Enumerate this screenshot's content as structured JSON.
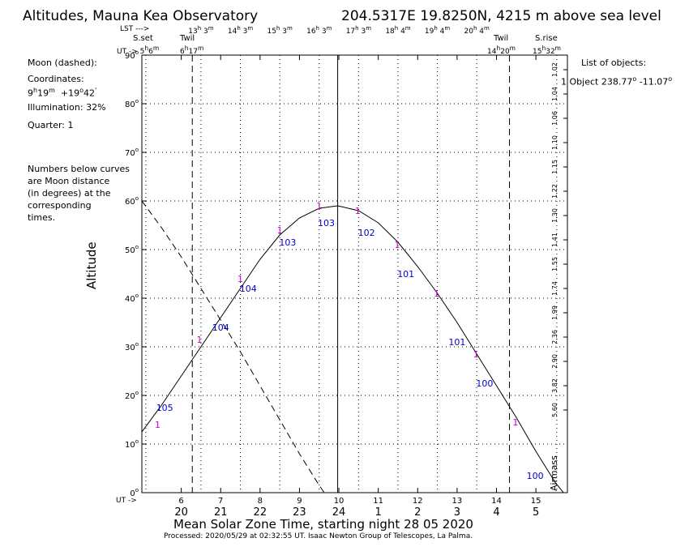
{
  "header": {
    "title": "Altitudes, Mauna Kea Observatory",
    "location": "204.5317E  19.8250N, 4215 m above sea level"
  },
  "lst": {
    "label": "LST --->",
    "ticks": [
      {
        "h": "13",
        "m": "3"
      },
      {
        "h": "14",
        "m": "3"
      },
      {
        "h": "15",
        "m": "3"
      },
      {
        "h": "16",
        "m": "3"
      },
      {
        "h": "17",
        "m": "3"
      },
      {
        "h": "18",
        "m": "4"
      },
      {
        "h": "19",
        "m": "4"
      },
      {
        "h": "20",
        "m": "4"
      }
    ]
  },
  "events": {
    "sunset_label": "S.set",
    "sunset_h": "5",
    "sunset_m": "6",
    "twil_evening_label": "Twil",
    "twil_evening_h": "6",
    "twil_evening_m": "17",
    "twil_morning_label": "Twil",
    "twil_morning_h": "14",
    "twil_morning_m": "20",
    "sunrise_label": "S.rise",
    "sunrise_h": "15",
    "sunrise_m": "32",
    "ut_arrow": "UT ->"
  },
  "moon": {
    "heading": "Moon (dashed):",
    "coord_label": "Coordinates:",
    "ra_h": "9",
    "ra_m": "19",
    "dec_deg": "+19",
    "dec_min": "42",
    "illumination": "Illumination:  32%",
    "quarter": "Quarter: 1",
    "note_lines": [
      "Numbers below curves",
      "are Moon distance",
      "(in degrees) at the",
      "corresponding",
      "times."
    ]
  },
  "objects": {
    "heading": "List of objects:",
    "item_number": "1",
    "item_name": "Object",
    "item_ra": "238.77",
    "item_dec": "-11.07"
  },
  "axes": {
    "ylabel": "Altitude",
    "xlabel": "Mean Solar Zone Time, starting night 28 05 2020",
    "airmass_label": "Airmass",
    "ut_label": "UT ->"
  },
  "footer": {
    "processed": "Processed: 2020/05/29 at 02:32:55 UT. Isaac  Newton Group of Telescopes, La Palma."
  },
  "colors": {
    "label_magenta": "#cc00cc",
    "distance_blue": "#0000cc"
  },
  "chart_data": {
    "type": "line",
    "xlim": [
      5.0,
      15.8
    ],
    "ylim": [
      0,
      90
    ],
    "yticks": [
      0,
      10,
      20,
      30,
      40,
      50,
      60,
      70,
      80,
      90
    ],
    "ut_ticks": [
      6,
      7,
      8,
      9,
      10,
      11,
      12,
      13,
      14,
      15
    ],
    "local_ticks": [
      {
        "x": 6,
        "label": "20"
      },
      {
        "x": 7,
        "label": "21"
      },
      {
        "x": 8,
        "label": "22"
      },
      {
        "x": 9,
        "label": "23"
      },
      {
        "x": 10,
        "label": "24"
      },
      {
        "x": 11,
        "label": "1"
      },
      {
        "x": 12,
        "label": "2"
      },
      {
        "x": 13,
        "label": "3"
      },
      {
        "x": 14,
        "label": "4"
      },
      {
        "x": 15,
        "label": "5"
      }
    ],
    "lst_tick_positions": [
      6.5,
      7.5,
      8.5,
      9.5,
      10.5,
      11.5,
      12.5,
      13.5
    ],
    "airmass_ticks": [
      {
        "alt": 87,
        "label": "1.02"
      },
      {
        "alt": 82,
        "label": "1.04"
      },
      {
        "alt": 77,
        "label": "1.06"
      },
      {
        "alt": 72,
        "label": "1.10"
      },
      {
        "alt": 67,
        "label": "1.15"
      },
      {
        "alt": 62,
        "label": "1.22"
      },
      {
        "alt": 57,
        "label": "1.30"
      },
      {
        "alt": 52,
        "label": "1.41"
      },
      {
        "alt": 47,
        "label": "1.55"
      },
      {
        "alt": 42,
        "label": "1.74"
      },
      {
        "alt": 37,
        "label": "1.99"
      },
      {
        "alt": 32,
        "label": "2.36"
      },
      {
        "alt": 27,
        "label": "2.90"
      },
      {
        "alt": 22,
        "label": "3.82"
      },
      {
        "alt": 17,
        "label": "5.60"
      }
    ],
    "event_lines": [
      {
        "x": 5.1,
        "style": "dotted"
      },
      {
        "x": 6.28,
        "style": "dashed"
      },
      {
        "x": 14.33,
        "style": "dashed"
      },
      {
        "x": 15.53,
        "style": "dotted"
      },
      {
        "x": 9.97,
        "style": "solid"
      }
    ],
    "series": [
      {
        "style": "solid",
        "x": [
          5.0,
          5.5,
          6.0,
          6.5,
          7.0,
          7.5,
          8.0,
          8.5,
          9.0,
          9.5,
          9.97,
          10.5,
          11.0,
          11.5,
          12.0,
          12.5,
          13.0,
          13.5,
          14.0,
          14.5,
          15.0,
          15.5,
          15.8
        ],
        "y": [
          12.5,
          18,
          24,
          30,
          36,
          42,
          48,
          53,
          56.5,
          58.5,
          59,
          58,
          55.5,
          51.5,
          46.5,
          41,
          35,
          28.5,
          22,
          15.5,
          8.5,
          2,
          -1
        ]
      },
      {
        "style": "dashed",
        "x": [
          5.0,
          5.5,
          6.0,
          6.5,
          7.0,
          7.5,
          8.0,
          8.5,
          9.0,
          9.5,
          9.8
        ],
        "y": [
          60,
          54.5,
          48.5,
          42,
          35.5,
          29,
          22,
          15,
          8,
          1.5,
          -2
        ]
      }
    ],
    "object_labels": [
      {
        "x": 5.4,
        "y": 14,
        "label": "1"
      },
      {
        "x": 6.46,
        "y": 31.5,
        "label": "1"
      },
      {
        "x": 7.5,
        "y": 44,
        "label": "1"
      },
      {
        "x": 8.5,
        "y": 54,
        "label": "1"
      },
      {
        "x": 9.5,
        "y": 59,
        "label": "1"
      },
      {
        "x": 10.48,
        "y": 58,
        "label": "1"
      },
      {
        "x": 11.48,
        "y": 51,
        "label": "1"
      },
      {
        "x": 12.48,
        "y": 41,
        "label": "1"
      },
      {
        "x": 13.48,
        "y": 28.5,
        "label": "1"
      },
      {
        "x": 14.48,
        "y": 14.5,
        "label": "1"
      }
    ],
    "distance_labels": [
      {
        "x": 5.58,
        "y": 17.5,
        "label": "105"
      },
      {
        "x": 7.0,
        "y": 34,
        "label": "104"
      },
      {
        "x": 7.7,
        "y": 42,
        "label": "104"
      },
      {
        "x": 8.7,
        "y": 51.5,
        "label": "103"
      },
      {
        "x": 9.68,
        "y": 55.5,
        "label": "103"
      },
      {
        "x": 10.7,
        "y": 53.5,
        "label": "102"
      },
      {
        "x": 11.7,
        "y": 45,
        "label": "101"
      },
      {
        "x": 13.0,
        "y": 31,
        "label": "101"
      },
      {
        "x": 13.7,
        "y": 22.5,
        "label": "100"
      },
      {
        "x": 14.98,
        "y": 3.5,
        "label": "100"
      }
    ]
  }
}
